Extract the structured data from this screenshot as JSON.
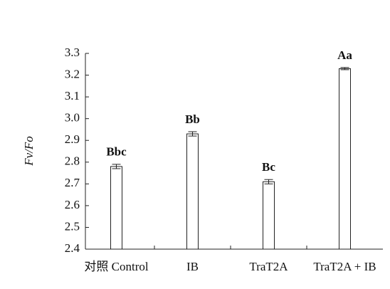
{
  "chart_data": {
    "type": "bar",
    "y_label": "Fv/Fo",
    "categories": [
      "对照 Control",
      "IB",
      "TraT2A",
      "TraT2A + IB"
    ],
    "values": [
      2.78,
      2.93,
      2.71,
      3.23
    ],
    "errors": [
      0.01,
      0.01,
      0.01,
      0.005
    ],
    "value_labels": [
      "Bbc",
      "Bb",
      "Bc",
      "Aa"
    ],
    "color": "#ffffff",
    "ylim": [
      2.4,
      3.3
    ],
    "yticks": [
      2.4,
      2.5,
      2.6,
      2.7,
      2.8,
      2.9,
      {
        "value": 3,
        "label": "3.0"
      },
      3.1,
      3.2,
      3.3
    ],
    "grid": false
  }
}
